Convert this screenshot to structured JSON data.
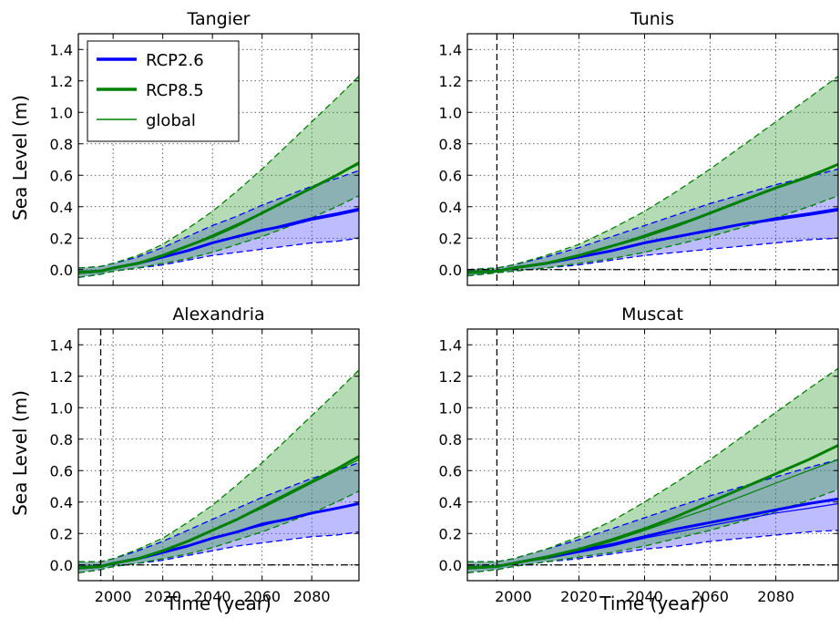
{
  "chart_data": [
    {
      "type": "line",
      "title": "Tangier",
      "xlabel": "",
      "ylabel": "Sea Level (m)",
      "xlim": [
        1986,
        2099
      ],
      "ylim": [
        -0.1,
        1.5
      ],
      "xticks": [
        "2000",
        "2020",
        "2040",
        "2060",
        "2080"
      ],
      "yticks": [
        "0.0",
        "0.2",
        "0.4",
        "0.6",
        "0.8",
        "1.0",
        "1.2",
        "1.4"
      ],
      "grid": true,
      "ref_year": null,
      "legend": {
        "placement": "top-left",
        "entries": [
          {
            "label": "RCP2.6",
            "color": "#0000ff",
            "style": "thick"
          },
          {
            "label": "RCP8.5",
            "color": "#008000",
            "style": "thick"
          },
          {
            "label": "global",
            "color": "#008000",
            "style": "thin"
          }
        ]
      },
      "x": [
        1986,
        1995,
        2000,
        2010,
        2020,
        2030,
        2040,
        2050,
        2060,
        2070,
        2080,
        2090,
        2099
      ],
      "series": [
        {
          "name": "RCP2.6",
          "color": "#0000ff",
          "values": [
            -0.02,
            -0.01,
            0.01,
            0.04,
            0.08,
            0.12,
            0.17,
            0.21,
            0.25,
            0.28,
            0.32,
            0.35,
            0.38
          ],
          "lower": [
            -0.05,
            -0.03,
            -0.01,
            0.01,
            0.03,
            0.06,
            0.09,
            0.11,
            0.13,
            0.15,
            0.17,
            0.18,
            0.2
          ],
          "upper": [
            0.01,
            0.02,
            0.04,
            0.08,
            0.14,
            0.21,
            0.28,
            0.34,
            0.41,
            0.47,
            0.53,
            0.58,
            0.63
          ]
        },
        {
          "name": "RCP8.5",
          "color": "#008000",
          "values": [
            -0.02,
            -0.01,
            0.01,
            0.04,
            0.09,
            0.15,
            0.21,
            0.28,
            0.36,
            0.44,
            0.52,
            0.6,
            0.68
          ],
          "lower": [
            -0.05,
            -0.03,
            -0.01,
            0.01,
            0.04,
            0.07,
            0.11,
            0.16,
            0.21,
            0.27,
            0.33,
            0.4,
            0.47
          ],
          "upper": [
            0.01,
            0.02,
            0.04,
            0.09,
            0.16,
            0.26,
            0.37,
            0.5,
            0.64,
            0.79,
            0.94,
            1.09,
            1.23
          ]
        }
      ],
      "global": [
        {
          "color": "#0000ff",
          "values": [
            -0.01,
            -0.005,
            0.01,
            0.04,
            0.08,
            0.12,
            0.17,
            0.21,
            0.25,
            0.29,
            0.33,
            0.36,
            0.39
          ]
        },
        {
          "color": "#008000",
          "values": [
            -0.01,
            -0.005,
            0.01,
            0.04,
            0.09,
            0.15,
            0.22,
            0.29,
            0.36,
            0.44,
            0.52,
            0.6,
            0.67
          ]
        }
      ]
    },
    {
      "type": "line",
      "title": "Tunis",
      "xlabel": "",
      "ylabel": "",
      "xlim": [
        1986,
        2099
      ],
      "ylim": [
        -0.1,
        1.5
      ],
      "xticks": [
        "2000",
        "2020",
        "2040",
        "2060",
        "2080"
      ],
      "yticks": [
        "0.0",
        "0.2",
        "0.4",
        "0.6",
        "0.8",
        "1.0",
        "1.2",
        "1.4"
      ],
      "grid": true,
      "ref_year": 1995,
      "x": [
        1986,
        1995,
        2000,
        2010,
        2020,
        2030,
        2040,
        2050,
        2060,
        2070,
        2080,
        2090,
        2099
      ],
      "series": [
        {
          "name": "RCP2.6",
          "color": "#0000ff",
          "values": [
            -0.02,
            -0.01,
            0.01,
            0.04,
            0.08,
            0.12,
            0.17,
            0.21,
            0.25,
            0.29,
            0.32,
            0.35,
            0.38
          ],
          "lower": [
            -0.04,
            -0.02,
            -0.01,
            0.01,
            0.03,
            0.06,
            0.09,
            0.11,
            0.13,
            0.15,
            0.17,
            0.19,
            0.2
          ],
          "upper": [
            0.0,
            0.01,
            0.03,
            0.08,
            0.14,
            0.21,
            0.28,
            0.35,
            0.42,
            0.48,
            0.54,
            0.59,
            0.64
          ]
        },
        {
          "name": "RCP8.5",
          "color": "#008000",
          "values": [
            -0.02,
            -0.01,
            0.01,
            0.04,
            0.09,
            0.15,
            0.21,
            0.28,
            0.36,
            0.44,
            0.52,
            0.59,
            0.67
          ],
          "lower": [
            -0.04,
            -0.02,
            -0.01,
            0.01,
            0.04,
            0.07,
            0.11,
            0.16,
            0.21,
            0.27,
            0.33,
            0.4,
            0.47
          ],
          "upper": [
            0.0,
            0.01,
            0.03,
            0.09,
            0.16,
            0.26,
            0.37,
            0.5,
            0.64,
            0.79,
            0.94,
            1.09,
            1.23
          ]
        }
      ],
      "global": [
        {
          "color": "#0000ff",
          "values": [
            -0.01,
            -0.005,
            0.01,
            0.04,
            0.08,
            0.12,
            0.17,
            0.21,
            0.25,
            0.29,
            0.33,
            0.36,
            0.39
          ]
        },
        {
          "color": "#008000",
          "values": [
            -0.01,
            -0.005,
            0.01,
            0.04,
            0.09,
            0.15,
            0.22,
            0.29,
            0.36,
            0.44,
            0.52,
            0.6,
            0.67
          ]
        }
      ]
    },
    {
      "type": "line",
      "title": "Alexandria",
      "xlabel": "Time (year)",
      "ylabel": "Sea Level (m)",
      "xlim": [
        1986,
        2099
      ],
      "ylim": [
        -0.1,
        1.5
      ],
      "xticks": [
        "2000",
        "2020",
        "2040",
        "2060",
        "2080"
      ],
      "yticks": [
        "0.0",
        "0.2",
        "0.4",
        "0.6",
        "0.8",
        "1.0",
        "1.2",
        "1.4"
      ],
      "grid": true,
      "ref_year": 1995,
      "x": [
        1986,
        1995,
        2000,
        2010,
        2020,
        2030,
        2040,
        2050,
        2060,
        2070,
        2080,
        2090,
        2099
      ],
      "series": [
        {
          "name": "RCP2.6",
          "color": "#0000ff",
          "values": [
            -0.02,
            -0.01,
            0.01,
            0.04,
            0.08,
            0.12,
            0.17,
            0.21,
            0.26,
            0.29,
            0.33,
            0.36,
            0.39
          ],
          "lower": [
            -0.05,
            -0.03,
            -0.01,
            0.01,
            0.03,
            0.06,
            0.09,
            0.12,
            0.14,
            0.16,
            0.18,
            0.19,
            0.21
          ],
          "upper": [
            0.02,
            0.02,
            0.04,
            0.09,
            0.15,
            0.22,
            0.29,
            0.36,
            0.43,
            0.49,
            0.55,
            0.6,
            0.65
          ]
        },
        {
          "name": "RCP8.5",
          "color": "#008000",
          "values": [
            -0.02,
            -0.01,
            0.01,
            0.04,
            0.09,
            0.15,
            0.22,
            0.29,
            0.37,
            0.45,
            0.53,
            0.61,
            0.69
          ],
          "lower": [
            -0.05,
            -0.03,
            -0.01,
            0.01,
            0.04,
            0.07,
            0.11,
            0.16,
            0.21,
            0.27,
            0.33,
            0.4,
            0.47
          ],
          "upper": [
            0.02,
            0.02,
            0.04,
            0.1,
            0.17,
            0.27,
            0.38,
            0.51,
            0.65,
            0.8,
            0.95,
            1.1,
            1.24
          ]
        }
      ],
      "global": [
        {
          "color": "#0000ff",
          "values": [
            -0.01,
            -0.005,
            0.01,
            0.04,
            0.08,
            0.12,
            0.17,
            0.21,
            0.25,
            0.29,
            0.33,
            0.36,
            0.39
          ]
        },
        {
          "color": "#008000",
          "values": [
            -0.01,
            -0.005,
            0.01,
            0.04,
            0.09,
            0.15,
            0.22,
            0.29,
            0.36,
            0.44,
            0.52,
            0.6,
            0.67
          ]
        }
      ]
    },
    {
      "type": "line",
      "title": "Muscat",
      "xlabel": "Time (year)",
      "ylabel": "",
      "xlim": [
        1986,
        2099
      ],
      "ylim": [
        -0.1,
        1.5
      ],
      "xticks": [
        "2000",
        "2020",
        "2040",
        "2060",
        "2080"
      ],
      "yticks": [
        "0.0",
        "0.2",
        "0.4",
        "0.6",
        "0.8",
        "1.0",
        "1.2",
        "1.4"
      ],
      "grid": true,
      "ref_year": 1995,
      "x": [
        1986,
        1995,
        2000,
        2010,
        2020,
        2030,
        2040,
        2050,
        2060,
        2070,
        2080,
        2090,
        2099
      ],
      "series": [
        {
          "name": "RCP2.6",
          "color": "#0000ff",
          "values": [
            -0.02,
            -0.01,
            0.01,
            0.05,
            0.09,
            0.13,
            0.18,
            0.23,
            0.27,
            0.31,
            0.35,
            0.39,
            0.42
          ],
          "lower": [
            -0.05,
            -0.03,
            -0.01,
            0.02,
            0.04,
            0.07,
            0.1,
            0.12,
            0.15,
            0.17,
            0.19,
            0.21,
            0.22
          ],
          "upper": [
            0.02,
            0.02,
            0.04,
            0.1,
            0.16,
            0.23,
            0.3,
            0.37,
            0.44,
            0.5,
            0.56,
            0.62,
            0.67
          ]
        },
        {
          "name": "RCP8.5",
          "color": "#008000",
          "values": [
            -0.02,
            -0.01,
            0.01,
            0.05,
            0.1,
            0.16,
            0.23,
            0.31,
            0.4,
            0.49,
            0.58,
            0.67,
            0.76
          ],
          "lower": [
            -0.05,
            -0.03,
            -0.01,
            0.02,
            0.05,
            0.08,
            0.12,
            0.17,
            0.22,
            0.28,
            0.34,
            0.41,
            0.48
          ],
          "upper": [
            0.02,
            0.02,
            0.04,
            0.1,
            0.18,
            0.28,
            0.4,
            0.53,
            0.67,
            0.82,
            0.97,
            1.12,
            1.25
          ]
        }
      ],
      "global": [
        {
          "color": "#0000ff",
          "values": [
            -0.01,
            -0.005,
            0.01,
            0.04,
            0.08,
            0.12,
            0.17,
            0.21,
            0.25,
            0.29,
            0.33,
            0.36,
            0.39
          ]
        },
        {
          "color": "#008000",
          "values": [
            -0.01,
            -0.005,
            0.01,
            0.04,
            0.09,
            0.15,
            0.22,
            0.29,
            0.36,
            0.44,
            0.52,
            0.6,
            0.67
          ]
        }
      ]
    }
  ]
}
